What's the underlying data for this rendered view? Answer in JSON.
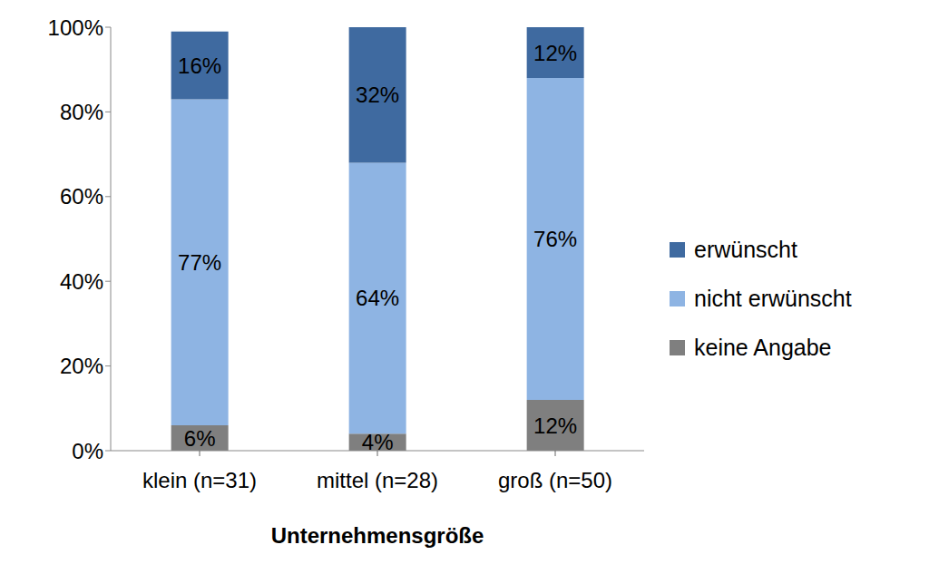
{
  "chart_data": {
    "type": "bar",
    "stacked": true,
    "data_labels": true,
    "grid": false,
    "legend": "right",
    "x_label": "Unternehmensgröße",
    "categories": [
      "klein (n=31)",
      "mittel (n=28)",
      "groß (n=50)"
    ],
    "ylim": [
      0,
      100
    ],
    "yticks": [
      {
        "value": 0,
        "label": "0%"
      },
      {
        "value": 20,
        "label": "20%"
      },
      {
        "value": 40,
        "label": "40%"
      },
      {
        "value": 60,
        "label": "60%"
      },
      {
        "value": 80,
        "label": "80%"
      },
      {
        "value": 100,
        "label": "100%"
      }
    ],
    "series": [
      {
        "name": "keine Angabe",
        "color": "#7f7f7f",
        "values": [
          6,
          4,
          12
        ],
        "value_labels": [
          "6%",
          "4%",
          "12%"
        ]
      },
      {
        "name": "nicht erwünscht",
        "color": "#8eb4e3",
        "values": [
          77,
          64,
          76
        ],
        "value_labels": [
          "77%",
          "64%",
          "76%"
        ]
      },
      {
        "name": "erwünscht",
        "color": "#3f6aa0",
        "values": [
          16,
          32,
          12
        ],
        "value_labels": [
          "16%",
          "32%",
          "12%"
        ]
      }
    ]
  }
}
